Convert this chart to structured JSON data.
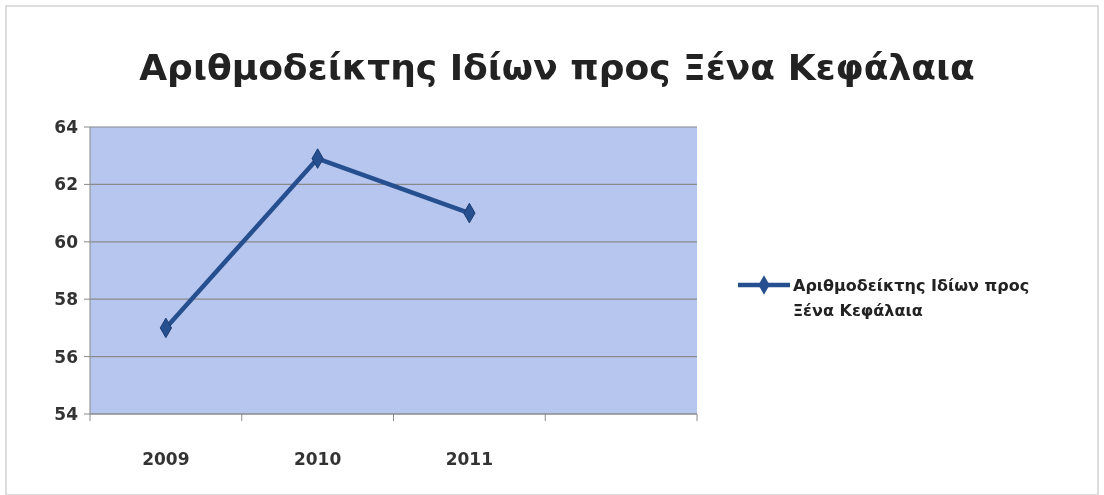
{
  "chart_data": {
    "type": "line",
    "title": "Αριθμοδείκτης Ιδίων προς Ξένα Κεφάλαια",
    "categories": [
      "2009",
      "2010",
      "2011",
      null
    ],
    "series": [
      {
        "name": "Αριθμοδείκτης Ιδίων προς Ξένα Κεφάλαια",
        "color": "#254f8f",
        "values": [
          57.0,
          62.9,
          61.0,
          null
        ]
      }
    ],
    "ylim": [
      54,
      64
    ],
    "yticks": [
      54,
      56,
      58,
      60,
      62,
      64
    ],
    "grid": "y",
    "legend": "right",
    "marker": "diamond"
  }
}
